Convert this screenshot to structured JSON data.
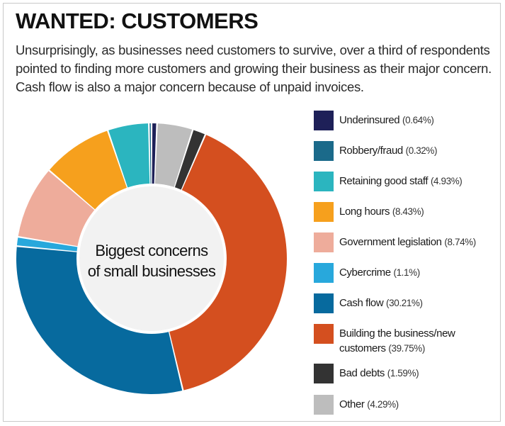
{
  "header": {
    "title": "WANTED: CUSTOMERS",
    "subtitle": "Unsurprisingly, as businesses need customers to survive, over a third of respondents pointed to finding more customers and growing their business as their major concern. Cash flow is also a major concern because of unpaid invoices."
  },
  "chart_data": {
    "type": "pie",
    "subtype": "donut",
    "center_label": [
      "Biggest concerns",
      "of small businesses"
    ],
    "legend_placement": "right",
    "series": [
      {
        "name": "Underinsured",
        "value": 0.64,
        "value_label": "(0.64%)",
        "color": "#1e2058"
      },
      {
        "name": "Robbery/fraud",
        "value": 0.32,
        "value_label": "(0.32%)",
        "color": "#1b6a8a"
      },
      {
        "name": "Retaining good staff",
        "value": 4.93,
        "value_label": "(4.93%)",
        "color": "#2bb5bf"
      },
      {
        "name": "Long hours",
        "value": 8.43,
        "value_label": "(8.43%)",
        "color": "#f6a01d"
      },
      {
        "name": "Government legislation",
        "value": 8.74,
        "value_label": "(8.74%)",
        "color": "#eeac9b"
      },
      {
        "name": "Cybercrime",
        "value": 1.1,
        "value_label": "(1.1%)",
        "color": "#28a8dc"
      },
      {
        "name": "Cash flow",
        "value": 30.21,
        "value_label": "(30.21%)",
        "color": "#076a9e"
      },
      {
        "name": "Building the business/new customers",
        "name_lines": [
          "Building the business/new",
          "customers"
        ],
        "value": 39.75,
        "value_label": "(39.75%)",
        "color": "#d44f1f"
      },
      {
        "name": "Bad debts",
        "value": 1.59,
        "value_label": "(1.59%)",
        "color": "#333333"
      },
      {
        "name": "Other",
        "value": 4.29,
        "value_label": "(4.29%)",
        "color": "#bdbdbd"
      }
    ],
    "draw_order_clockwise_from_top": [
      "Underinsured",
      "Other",
      "Bad debts",
      "Building the business/new customers",
      "Cash flow",
      "Cybercrime",
      "Government legislation",
      "Long hours",
      "Retaining good staff",
      "Robbery/fraud"
    ]
  }
}
